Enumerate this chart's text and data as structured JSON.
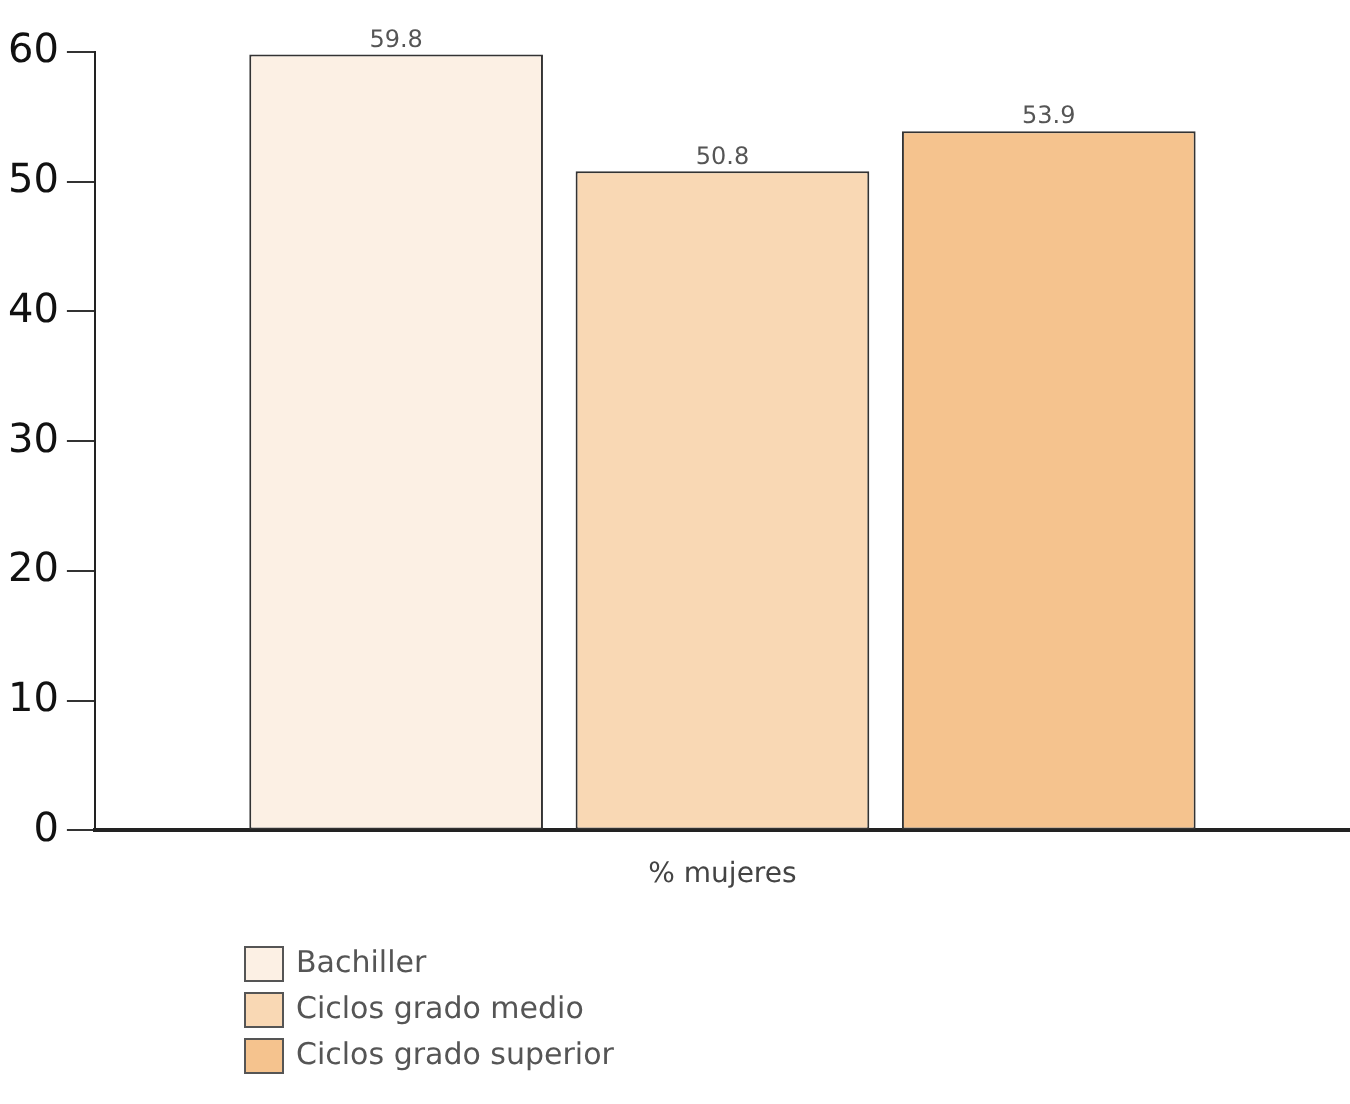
{
  "chart_data": {
    "type": "bar",
    "categories": [
      "% mujeres"
    ],
    "series": [
      {
        "name": "Bachiller",
        "color": "#fcf0e4",
        "values": [
          59.8
        ]
      },
      {
        "name": "Ciclos grado medio",
        "color": "#f9d8b4",
        "values": [
          50.8
        ]
      },
      {
        "name": "Ciclos grado superior",
        "color": "#f5c38e",
        "values": [
          53.9
        ]
      }
    ],
    "ylim": [
      0,
      60
    ],
    "yticks": [
      0,
      10,
      20,
      30,
      40,
      50,
      60
    ],
    "grid": false,
    "legend": "bottom",
    "data_labels": true
  }
}
